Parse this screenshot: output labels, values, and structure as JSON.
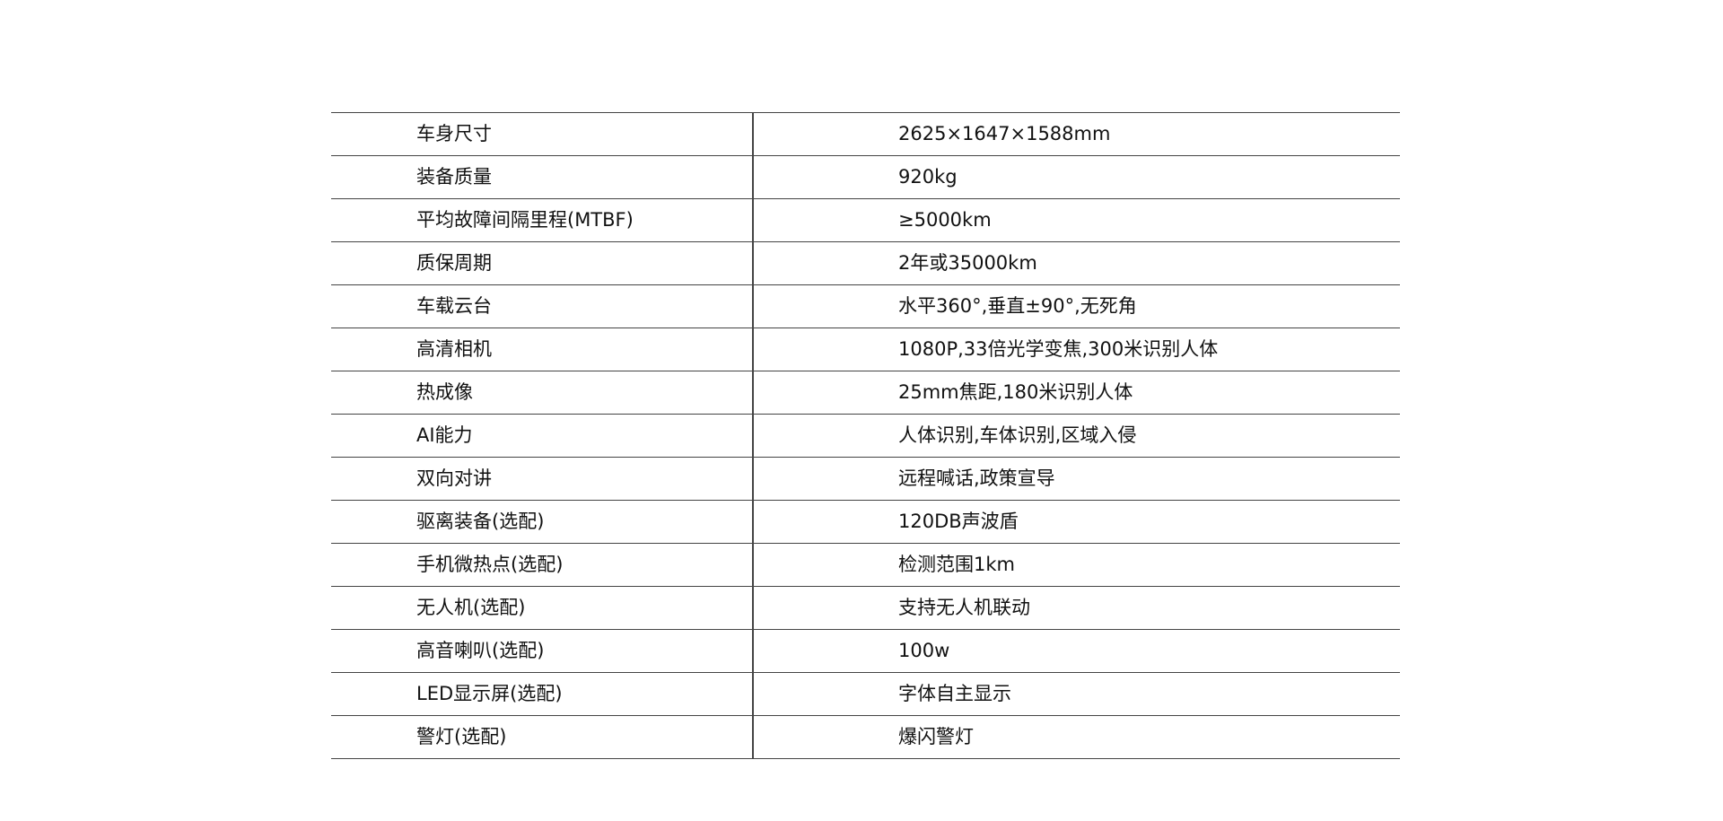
{
  "specs": [
    {
      "label": "车身尺寸",
      "value": "2625×1647×1588mm"
    },
    {
      "label": "装备质量",
      "value": "920kg"
    },
    {
      "label": "平均故障间隔里程(MTBF)",
      "value": "≥5000km"
    },
    {
      "label": "质保周期",
      "value": "2年或35000km"
    },
    {
      "label": "车载云台",
      "value": "水平360°,垂直±90°,无死角"
    },
    {
      "label": "高清相机",
      "value": "1080P,33倍光学变焦,300米识别人体"
    },
    {
      "label": "热成像",
      "value": "25mm焦距,180米识别人体"
    },
    {
      "label": "AI能力",
      "value": "人体识别,车体识别,区域入侵"
    },
    {
      "label": "双向对讲",
      "value": "远程喊话,政策宣导"
    },
    {
      "label": "驱离装备(选配)",
      "value": "120DB声波盾"
    },
    {
      "label": "手机微热点(选配)",
      "value": "检测范围1km"
    },
    {
      "label": "无人机(选配)",
      "value": "支持无人机联动"
    },
    {
      "label": "高音喇叭(选配)",
      "value": "100w"
    },
    {
      "label": "LED显示屏(选配)",
      "value": "字体自主显示"
    },
    {
      "label": "警灯(选配)",
      "value": "爆闪警灯"
    }
  ]
}
